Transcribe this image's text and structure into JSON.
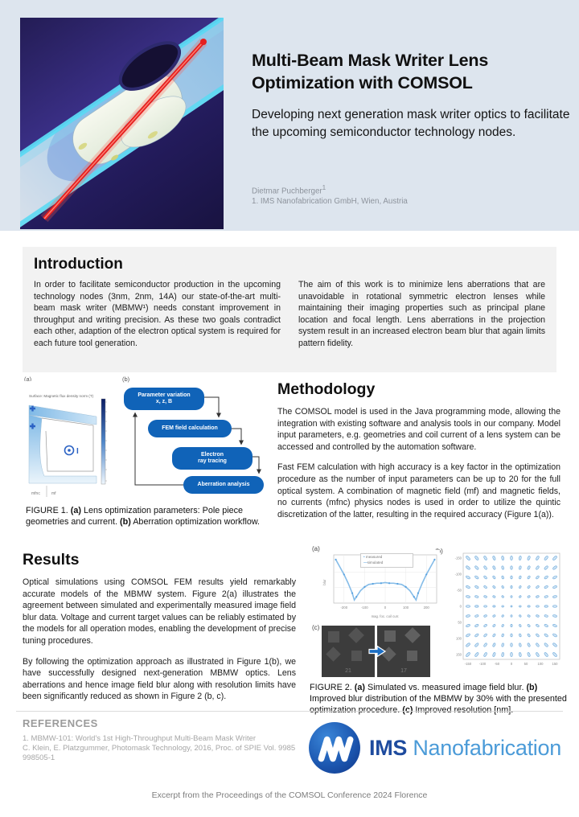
{
  "header": {
    "title": "Multi-Beam Mask Writer Lens Optimization with COMSOL",
    "subtitle": "Developing next generation mask writer optics to facilitate the upcoming semiconductor technology nodes.",
    "author": "Dietmar Puchberger",
    "author_sup": "1",
    "affiliation": "1. IMS Nanofabrication GmbH,  Wien, Austria"
  },
  "introduction": {
    "heading": "Introduction",
    "col1": "In order to facilitate semiconductor production in the upcoming technology nodes (3nm, 2nm, 14A) our state-of-the-art multi-beam mask writer (MBMW¹) needs constant improvement in throughput and writing precision. As these two goals contradict each other, adaption of the electron optical system is required for each future tool generation.",
    "col2": "The aim of this work is to minimize lens aberrations that are unavoidable in rotational symmetric electron lenses while maintaining their imaging properties such as principal plane location and focal length. Lens aberrations in the projection system result in an increased electron beam blur that again limits pattern fidelity."
  },
  "methodology": {
    "heading": "Methodology",
    "p1": "The COMSOL model is used in the Java programming mode, allowing the integration with existing software and analysis tools in our company. Model input parameters, e.g. geometries and coil current of a lens system can be accessed and controlled by the automation software.",
    "p2": "Fast FEM calculation with high accuracy is a key factor in the optimization procedure as the number of input parameters can be up to 20 for the full optical system. A combination of magnetic field (mf) and magnetic fields, no currents (mfnc) physics nodes is used in order to utilize the quintic discretization of the latter, resulting in the required accuracy (Figure 1(a))."
  },
  "results": {
    "heading": "Results",
    "p1": "Optical simulations using COMSOL FEM results yield remarkably accurate models of the MBMW system. Figure 2(a) illustrates the agreement between simulated and experimentally measured image field blur data. Voltage and current target values can be reliably estimated by the models for all operation modes, enabling the development of precise tuning procedures.",
    "p2": "By following the optimization approach as illustrated in Figure 1(b), we have successfully designed next-generation MBMW optics. Lens aberrations and hence image field blur along with resolution limits have been significantly reduced as shown in Figure 2 (b, c)."
  },
  "figure1": {
    "label_a": "(a)",
    "label_b": "(b)",
    "plot_title": "Surface: Magnetic flux density norm (T)",
    "coil_label": "I",
    "physics_left": "mfnc",
    "physics_right": "mf",
    "workflow": [
      [
        "Parameter variation",
        "x, z, B"
      ],
      [
        "FEM field calculation"
      ],
      [
        "Electron",
        "ray tracing"
      ],
      [
        "Aberration analysis"
      ]
    ],
    "caption": {
      "head": "FIGURE 1. ",
      "a": "(a)",
      "a_text": " Lens optimization parameters: Pole piece geometries and current. ",
      "b": "(b)",
      "b_text": " Aberration optimization workflow."
    }
  },
  "figure2": {
    "label_a": "(a)",
    "label_b": "(b)",
    "label_c": "(c)",
    "legend": [
      "measured",
      "simulated"
    ],
    "panel_c": {
      "left_value": "21",
      "right_value": "17"
    },
    "caption": {
      "head": "FIGURE 2. ",
      "a": "(a)",
      "a_text": " Simulated vs. measured image field blur. ",
      "b": "(b)",
      "b_text": " Improved blur distribution of the MBMW by 30% with the presented optimization procedure. ",
      "c": "(c)",
      "c_text": " Improved resolution [nm]."
    }
  },
  "references": {
    "heading": "REFERENCES",
    "lines": [
      "1. MBMW-101: World's 1st High-Throughput Multi-Beam Mask Writer",
      "C. Klein, E. Platzgummer, Photomask Technology, 2016,  Proc. of SPIE Vol. 9985",
      "998505-1"
    ]
  },
  "logo": {
    "ims": "IMS",
    "nano": "Nanofabrication"
  },
  "footer": {
    "text": "Excerpt from the Proceedings of the COMSOL Conference 2024 Florence"
  },
  "colors": {
    "header_band": "#dde5ee",
    "panel_gray": "#f2f2f2",
    "comsol_blue": "#1063b8",
    "curve_blue": "#7db8e8",
    "logo_dark": "#1e4b9e",
    "logo_light": "#4b9bd8",
    "beam_red": "#e51f1f"
  },
  "chart_data": [
    {
      "id": "fig2a",
      "type": "line",
      "title": "",
      "xlabel": "mag. foc. coil curr.",
      "ylabel": "blur",
      "xlim": [
        -250,
        250
      ],
      "ylim": [
        0,
        75
      ],
      "xticks": [
        -200,
        -100,
        0,
        100,
        200
      ],
      "legend_position": "top-center",
      "x": [
        -240,
        -220,
        -200,
        -180,
        -160,
        -150,
        -140,
        -120,
        -100,
        -80,
        -60,
        -40,
        -20,
        0,
        20,
        40,
        60,
        80,
        100,
        120,
        140,
        150,
        160,
        180,
        200,
        220,
        240
      ],
      "series": [
        {
          "name": "measured",
          "marker": "dot",
          "values": [
            70,
            58,
            46,
            32,
            16,
            5,
            10,
            20,
            26,
            30,
            31,
            32,
            32,
            33,
            32,
            32,
            31,
            30,
            26,
            20,
            10,
            5,
            16,
            32,
            46,
            58,
            70
          ]
        },
        {
          "name": "simulated",
          "marker": "line",
          "values": [
            70,
            58,
            46,
            32,
            16,
            5,
            10,
            20,
            26,
            30,
            31,
            32,
            32,
            33,
            32,
            32,
            31,
            30,
            26,
            20,
            10,
            5,
            16,
            32,
            46,
            58,
            70
          ]
        }
      ]
    },
    {
      "id": "fig2b",
      "type": "scatter",
      "description": "11 x 11 grid spot diagram of the image-field blur distribution; marker elongation and tilt grow with distance from field center",
      "grid_rows": 11,
      "grid_cols": 11,
      "xticks": [
        -150,
        -100,
        -50,
        0,
        50,
        100,
        150
      ],
      "yticks": [
        -150,
        -100,
        -50,
        0,
        50,
        100,
        150
      ]
    },
    {
      "id": "fig1a",
      "type": "heatmap",
      "title": "Surface: Magnetic flux density norm (T)",
      "colorbar": true,
      "regions": [
        "mfnc",
        "mf"
      ],
      "annotations": [
        "+",
        "+",
        "I"
      ]
    }
  ]
}
